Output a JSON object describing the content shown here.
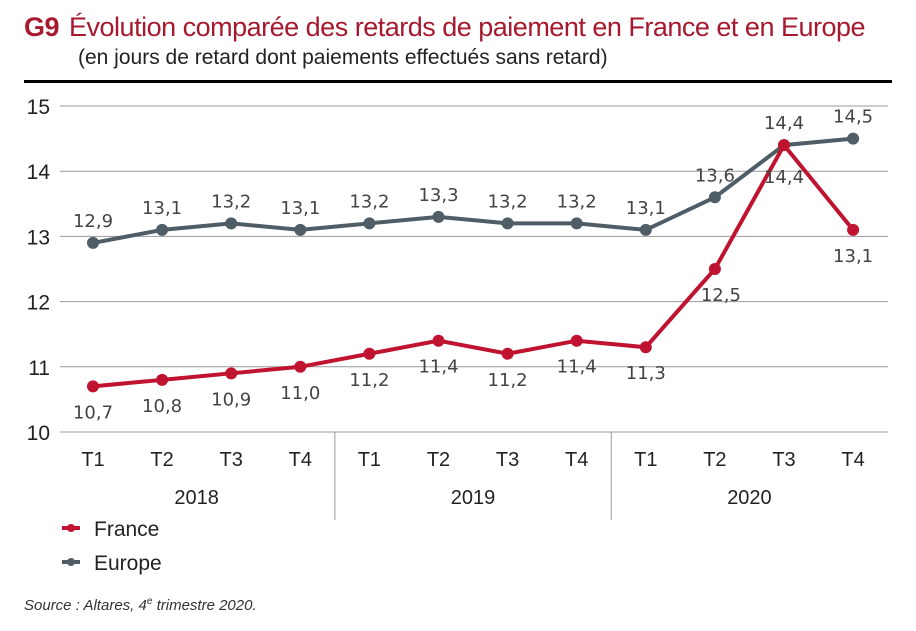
{
  "chart_data": {
    "type": "line",
    "figure_id": "G9",
    "title": "Évolution comparée des retards de paiement en France et en Europe",
    "subtitle": "(en jours de retard dont paiements effectués sans retard)",
    "categories": [
      "T1",
      "T2",
      "T3",
      "T4",
      "T1",
      "T2",
      "T3",
      "T4",
      "T1",
      "T2",
      "T3",
      "T4"
    ],
    "groups": [
      {
        "label": "2018",
        "span": 4
      },
      {
        "label": "2019",
        "span": 4
      },
      {
        "label": "2020",
        "span": 4
      }
    ],
    "ylim": [
      10,
      15
    ],
    "yticks": [
      10,
      11,
      12,
      13,
      14,
      15
    ],
    "grid": true,
    "legend_position": "bottom-left",
    "series": [
      {
        "name": "France",
        "color": "#c0132f",
        "values": [
          10.7,
          10.8,
          10.9,
          11.0,
          11.2,
          11.4,
          11.2,
          11.4,
          11.3,
          12.5,
          14.4,
          13.1
        ]
      },
      {
        "name": "Europe",
        "color": "#4f5d67",
        "values": [
          12.9,
          13.1,
          13.2,
          13.1,
          13.2,
          13.3,
          13.2,
          13.2,
          13.1,
          13.6,
          14.4,
          14.5
        ]
      }
    ],
    "source": {
      "prefix": "Source : Altares, 4",
      "sup": "e",
      "suffix": " trimestre 2020."
    }
  }
}
